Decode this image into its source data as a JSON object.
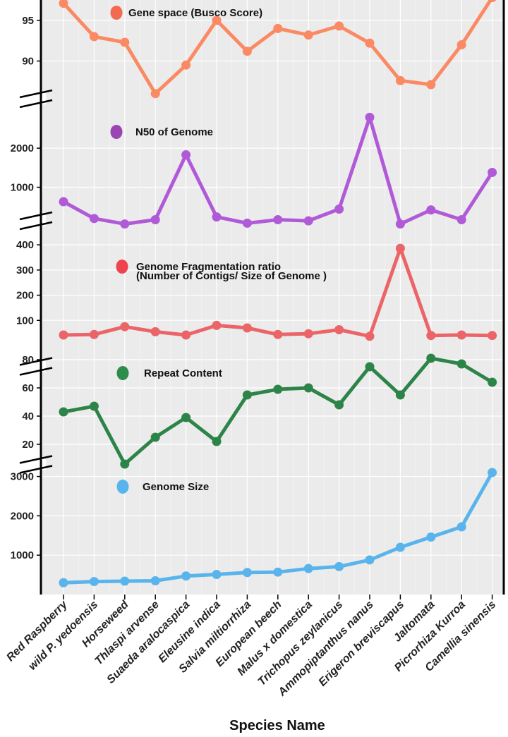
{
  "chart_data": {
    "type": "line",
    "xlabel": "Species Name",
    "categories": [
      "Red Raspberry",
      "wild P. yedoensis",
      "Horseweed",
      "Thlaspi arvense",
      "Suaeda aralocaspica",
      "Eleusine indica",
      "Salvia miltiorrhiza",
      "European beech",
      "Malus x domestica",
      "Trichopus zeylanicus",
      "Ammopiptanthus nanus",
      "Erigeron breviscapus",
      "Jaltomata",
      "Picrorhiza Kurroa",
      "Camellia sinensis"
    ],
    "panels": [
      {
        "legend": "Gene space (Busco Score)",
        "legend_color": "#f26a4f",
        "line_color": "#fa8a64",
        "yticks": [
          90,
          95
        ],
        "ylim": [
          84.5,
          97.5
        ],
        "values": [
          97.1,
          93.0,
          92.3,
          86.0,
          89.5,
          95.0,
          91.2,
          94.0,
          93.2,
          94.3,
          92.2,
          87.6,
          87.1,
          92.0,
          97.8
        ]
      },
      {
        "legend": "N50 of Genome",
        "legend_color": "#9b45b4",
        "line_color": "#b05ad8",
        "yticks": [
          1000,
          2000
        ],
        "ylim": [
          -20,
          2580
        ],
        "values": [
          630,
          200,
          60,
          170,
          1830,
          240,
          80,
          170,
          140,
          440,
          2790,
          60,
          420,
          170,
          1380
        ]
      },
      {
        "legend": "Genome Fragmentation ratio",
        "legend_line2": "(Number of Contigs/ Size of Genome )",
        "legend_color": "#ef4450",
        "line_color": "#eb6468",
        "yticks": [
          100,
          200,
          300,
          400
        ],
        "ylim": [
          0,
          420
        ],
        "values": [
          42,
          44,
          75,
          55,
          42,
          80,
          70,
          44,
          47,
          63,
          37,
          386,
          40,
          42,
          40
        ]
      },
      {
        "legend": "Repeat Content",
        "legend_color": "#2e8b4a",
        "line_color": "#2d8449",
        "yticks": [
          20,
          40,
          60,
          80
        ],
        "ylim": [
          6,
          80
        ],
        "values": [
          43,
          47,
          6,
          25,
          39,
          22,
          55,
          59,
          60,
          48,
          75,
          55,
          81,
          77,
          64
        ]
      },
      {
        "legend": "Genome Size",
        "legend_color": "#5ab4ec",
        "line_color": "#5ab4ec",
        "yticks": [
          1000,
          2000,
          3000
        ],
        "ylim": [
          0,
          3100
        ],
        "values": [
          300,
          330,
          340,
          350,
          470,
          510,
          560,
          570,
          660,
          710,
          880,
          1200,
          1460,
          1720,
          3100
        ]
      }
    ]
  }
}
